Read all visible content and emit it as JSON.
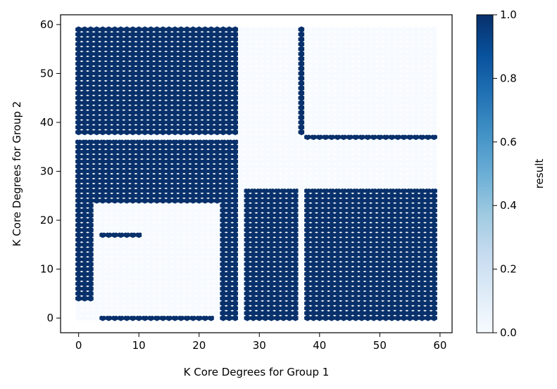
{
  "chart_data": {
    "type": "scatter",
    "title": "",
    "xlabel": "K Core Degrees for Group 1",
    "ylabel": "K Core Degrees for Group 2",
    "xlim": [
      -3,
      62
    ],
    "ylim": [
      -3,
      62
    ],
    "xticks": [
      0,
      10,
      20,
      30,
      40,
      50,
      60
    ],
    "yticks": [
      0,
      10,
      20,
      30,
      40,
      50,
      60
    ],
    "grid": false,
    "colorbar": {
      "label": "result",
      "range": [
        0,
        1
      ],
      "ticks": [
        0.0,
        0.2,
        0.4,
        0.6,
        0.8,
        1.0
      ],
      "tick_labels": [
        "0.0",
        "0.2",
        "0.4",
        "0.6",
        "0.8",
        "1.0"
      ],
      "colormap": "Blues",
      "low_color": "#f7fbff",
      "high_color": "#08306b"
    },
    "marker": "hexagon",
    "grid_values": {
      "x_range": [
        0,
        59
      ],
      "y_range": [
        0,
        59
      ],
      "note_result_1_regions": [
        {
          "x": [
            0,
            26
          ],
          "y": [
            38,
            59
          ]
        },
        {
          "x": [
            0,
            26
          ],
          "y": [
            27,
            36
          ]
        },
        {
          "x": [
            0,
            2
          ],
          "y": [
            4,
            26
          ]
        },
        {
          "x": [
            3,
            10
          ],
          "y": [
            24,
            26
          ]
        },
        {
          "x": [
            28,
            36
          ],
          "y": [
            0,
            26
          ]
        },
        {
          "x": [
            38,
            59
          ],
          "y": [
            0,
            26
          ]
        },
        {
          "x": [
            24,
            26
          ],
          "y": [
            0,
            9
          ]
        },
        {
          "x": [
            4,
            22
          ],
          "y": [
            0,
            0
          ]
        },
        {
          "x": [
            37,
            37
          ],
          "y": [
            38,
            59
          ]
        },
        {
          "x": [
            38,
            59
          ],
          "y": [
            37,
            37
          ]
        }
      ],
      "note_result_0_regions": [
        {
          "x": [
            3,
            23
          ],
          "y": [
            1,
            23
          ]
        },
        {
          "x": [
            28,
            36
          ],
          "y": [
            28,
            59
          ]
        },
        {
          "x": [
            38,
            59
          ],
          "y": [
            38,
            59
          ]
        },
        {
          "x": [
            38,
            59
          ],
          "y": [
            28,
            36
          ]
        }
      ]
    }
  }
}
